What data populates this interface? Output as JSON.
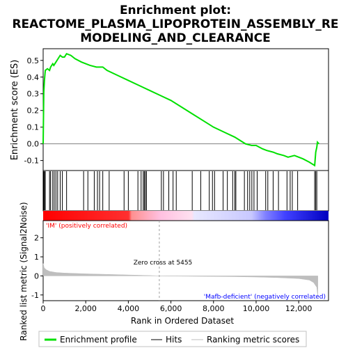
{
  "title_line1": "Enrichment plot:",
  "title_line2": "REACTOME_PLASMA_LIPOPROTEIN_ASSEMBLY_RE",
  "title_line3": "MODELING_AND_CLEARANCE",
  "ylabel_top": "Enrichment score (ES)",
  "ylabel_bottom": "Ranked list metric (Signal2Noise)",
  "xlabel": "Rank in Ordered Dataset",
  "zero_cross_label": "Zero cross at 5455",
  "pos_label": "'IM' (positively correlated)",
  "neg_label": "'Mafb-deficient' (negatively correlated)",
  "legend": {
    "profile": "Enrichment profile",
    "hits": "Hits",
    "metric": "Ranking metric scores"
  },
  "colors": {
    "profile": "#00e000",
    "hits": "#000000",
    "metric": "#bebebe",
    "pos": "#ff0000",
    "neg": "#0000ff"
  },
  "chart_data": {
    "type": "line",
    "x_range": [
      0,
      13400
    ],
    "x_ticks": [
      "0",
      "2,000",
      "4,000",
      "6,000",
      "8,000",
      "10,000",
      "12,000"
    ],
    "x_tick_values": [
      0,
      2000,
      4000,
      6000,
      8000,
      10000,
      12000
    ],
    "es_ylim": [
      -0.16,
      0.57
    ],
    "es_ticks": [
      "-0.1",
      "0.0",
      "0.1",
      "0.2",
      "0.3",
      "0.4",
      "0.5"
    ],
    "es_tick_values": [
      -0.1,
      0.0,
      0.1,
      0.2,
      0.3,
      0.4,
      0.5
    ],
    "metric_ylim": [
      -1.3,
      2.9
    ],
    "metric_ticks": [
      "-1",
      "0",
      "1",
      "2"
    ],
    "metric_tick_values": [
      -1,
      0,
      1,
      2
    ],
    "zero_cross": 5455,
    "n_genes": 12900,
    "enrichment_profile": [
      [
        0,
        0.0
      ],
      [
        30,
        0.31
      ],
      [
        60,
        0.38
      ],
      [
        100,
        0.44
      ],
      [
        200,
        0.45
      ],
      [
        300,
        0.44
      ],
      [
        350,
        0.46
      ],
      [
        450,
        0.48
      ],
      [
        500,
        0.47
      ],
      [
        600,
        0.49
      ],
      [
        700,
        0.51
      ],
      [
        800,
        0.53
      ],
      [
        900,
        0.52
      ],
      [
        1000,
        0.52
      ],
      [
        1100,
        0.54
      ],
      [
        1300,
        0.53
      ],
      [
        1500,
        0.51
      ],
      [
        1800,
        0.49
      ],
      [
        2000,
        0.48
      ],
      [
        2200,
        0.47
      ],
      [
        2500,
        0.46
      ],
      [
        2800,
        0.46
      ],
      [
        3000,
        0.44
      ],
      [
        3500,
        0.41
      ],
      [
        4000,
        0.38
      ],
      [
        4500,
        0.35
      ],
      [
        5000,
        0.32
      ],
      [
        5500,
        0.29
      ],
      [
        6000,
        0.26
      ],
      [
        6500,
        0.22
      ],
      [
        7000,
        0.18
      ],
      [
        7500,
        0.14
      ],
      [
        8000,
        0.1
      ],
      [
        8500,
        0.07
      ],
      [
        9000,
        0.04
      ],
      [
        9500,
        0.0
      ],
      [
        9800,
        -0.01
      ],
      [
        10000,
        -0.01
      ],
      [
        10300,
        -0.03
      ],
      [
        10500,
        -0.04
      ],
      [
        10800,
        -0.05
      ],
      [
        11000,
        -0.06
      ],
      [
        11300,
        -0.07
      ],
      [
        11500,
        -0.08
      ],
      [
        11800,
        -0.07
      ],
      [
        12200,
        -0.09
      ],
      [
        12500,
        -0.11
      ],
      [
        12750,
        -0.13
      ],
      [
        12800,
        -0.05
      ],
      [
        12850,
        -0.02
      ],
      [
        12880,
        0.01
      ],
      [
        12950,
        0.0
      ]
    ],
    "hits": [
      30,
      60,
      100,
      300,
      350,
      450,
      520,
      600,
      680,
      800,
      900,
      1100,
      1900,
      2100,
      2400,
      2550,
      2650,
      2800,
      3100,
      3800,
      4000,
      4450,
      4600,
      4700,
      4750,
      4800,
      4850,
      5550,
      5650,
      5900,
      6100,
      6250,
      7000,
      7400,
      7800,
      7950,
      8050,
      8450,
      8650,
      8900,
      9000,
      9050,
      9450,
      9600,
      9700,
      9800,
      9900,
      10050,
      10450,
      10550,
      10800,
      11050,
      11450,
      11600,
      11700,
      11950,
      12750,
      12800,
      12850
    ],
    "metric_profile": [
      [
        0,
        0.65
      ],
      [
        50,
        0.42
      ],
      [
        150,
        0.32
      ],
      [
        300,
        0.24
      ],
      [
        600,
        0.18
      ],
      [
        1000,
        0.15
      ],
      [
        2000,
        0.11
      ],
      [
        3000,
        0.08
      ],
      [
        4000,
        0.05
      ],
      [
        5000,
        0.02
      ],
      [
        5455,
        0.0
      ],
      [
        6000,
        -0.01
      ],
      [
        7000,
        -0.02
      ],
      [
        8000,
        -0.03
      ],
      [
        9000,
        -0.04
      ],
      [
        10000,
        -0.06
      ],
      [
        11000,
        -0.09
      ],
      [
        12000,
        -0.14
      ],
      [
        12500,
        -0.22
      ],
      [
        12700,
        -0.35
      ],
      [
        12850,
        -0.6
      ],
      [
        12900,
        -1.1
      ]
    ]
  }
}
